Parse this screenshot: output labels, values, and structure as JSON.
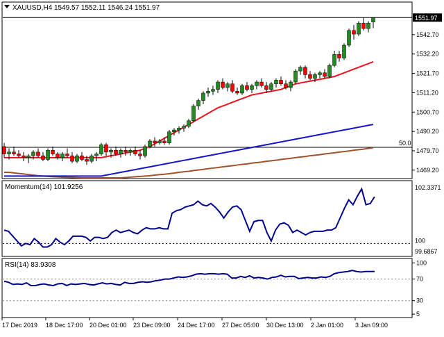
{
  "header": {
    "symbol": "XAUUSD,H4",
    "ohlc": "1549.57 1552.11 1546.24 1551.97"
  },
  "colors": {
    "bull": "#228b22",
    "bear": "#ff0000",
    "ma_fast": "#e8141e",
    "ma_mid": "#1414c8",
    "ma_slow": "#a0522d",
    "indicator": "#00008b",
    "grid": "#000000"
  },
  "chart_data": [
    {
      "type": "candlestick",
      "title": "XAUUSD,H4",
      "ylim": [
        1465,
        1560
      ],
      "yticks": [
        "1469.20",
        "1479.70",
        "1490.20",
        "1500.70",
        "1511.20",
        "1521.70",
        "1532.20",
        "1542.70"
      ],
      "yticks_values": [
        1469.2,
        1479.7,
        1490.2,
        1500.7,
        1511.2,
        1521.7,
        1532.2,
        1542.7
      ],
      "current_price": "1551.97",
      "level_label": "50.0",
      "level_value": 1481.6,
      "candles": [
        [
          1482,
          1484,
          1476,
          1478
        ],
        [
          1478,
          1481,
          1475,
          1479
        ],
        [
          1479,
          1482,
          1477,
          1478
        ],
        [
          1478,
          1480,
          1476,
          1477
        ],
        [
          1477,
          1479,
          1474,
          1476
        ],
        [
          1476,
          1478,
          1473,
          1477
        ],
        [
          1477,
          1480,
          1475,
          1479
        ],
        [
          1479,
          1481,
          1476,
          1477
        ],
        [
          1477,
          1479,
          1474,
          1475
        ],
        [
          1475,
          1481,
          1474,
          1480
        ],
        [
          1480,
          1482,
          1477,
          1478
        ],
        [
          1478,
          1479,
          1475,
          1476
        ],
        [
          1476,
          1479,
          1474,
          1478
        ],
        [
          1478,
          1481,
          1476,
          1477
        ],
        [
          1477,
          1479,
          1473,
          1474
        ],
        [
          1474,
          1478,
          1473,
          1477
        ],
        [
          1477,
          1479,
          1474,
          1475
        ],
        [
          1475,
          1477,
          1472,
          1474
        ],
        [
          1474,
          1478,
          1473,
          1477
        ],
        [
          1477,
          1479,
          1474,
          1478
        ],
        [
          1478,
          1484,
          1477,
          1483
        ],
        [
          1483,
          1484,
          1477,
          1479
        ],
        [
          1479,
          1481,
          1476,
          1480
        ],
        [
          1480,
          1482,
          1477,
          1478
        ],
        [
          1478,
          1481,
          1476,
          1480
        ],
        [
          1480,
          1482,
          1477,
          1479
        ],
        [
          1479,
          1481,
          1477,
          1480
        ],
        [
          1480,
          1482,
          1477,
          1478
        ],
        [
          1478,
          1480,
          1475,
          1477
        ],
        [
          1477,
          1483,
          1476,
          1482
        ],
        [
          1482,
          1486,
          1481,
          1485
        ],
        [
          1485,
          1487,
          1482,
          1484
        ],
        [
          1484,
          1486,
          1483,
          1485
        ],
        [
          1485,
          1487,
          1483,
          1484
        ],
        [
          1484,
          1491,
          1483,
          1490
        ],
        [
          1490,
          1492,
          1488,
          1491
        ],
        [
          1491,
          1493,
          1489,
          1492
        ],
        [
          1492,
          1494,
          1490,
          1493
        ],
        [
          1493,
          1497,
          1492,
          1496
        ],
        [
          1496,
          1505,
          1495,
          1504
        ],
        [
          1504,
          1508,
          1502,
          1507
        ],
        [
          1507,
          1512,
          1505,
          1511
        ],
        [
          1511,
          1514,
          1509,
          1512
        ],
        [
          1512,
          1515,
          1510,
          1513
        ],
        [
          1513,
          1518,
          1511,
          1517
        ],
        [
          1517,
          1519,
          1513,
          1514
        ],
        [
          1514,
          1517,
          1512,
          1516
        ],
        [
          1516,
          1518,
          1511,
          1512
        ],
        [
          1512,
          1514,
          1510,
          1511
        ],
        [
          1511,
          1516,
          1510,
          1515
        ],
        [
          1515,
          1517,
          1512,
          1513
        ],
        [
          1513,
          1516,
          1511,
          1515
        ],
        [
          1515,
          1518,
          1513,
          1517
        ],
        [
          1517,
          1519,
          1514,
          1515
        ],
        [
          1515,
          1517,
          1511,
          1513
        ],
        [
          1513,
          1517,
          1512,
          1516
        ],
        [
          1516,
          1519,
          1514,
          1518
        ],
        [
          1518,
          1520,
          1515,
          1516
        ],
        [
          1516,
          1518,
          1513,
          1514
        ],
        [
          1514,
          1518,
          1512,
          1517
        ],
        [
          1517,
          1524,
          1516,
          1523
        ],
        [
          1523,
          1526,
          1521,
          1525
        ],
        [
          1525,
          1526,
          1519,
          1521
        ],
        [
          1521,
          1523,
          1518,
          1519
        ],
        [
          1519,
          1522,
          1517,
          1521
        ],
        [
          1521,
          1523,
          1519,
          1522
        ],
        [
          1522,
          1524,
          1519,
          1520
        ],
        [
          1520,
          1527,
          1519,
          1526
        ],
        [
          1526,
          1534,
          1525,
          1532
        ],
        [
          1532,
          1534,
          1528,
          1530
        ],
        [
          1530,
          1538,
          1529,
          1537
        ],
        [
          1537,
          1546,
          1536,
          1545
        ],
        [
          1545,
          1548,
          1540,
          1543
        ],
        [
          1543,
          1550,
          1542,
          1549
        ],
        [
          1549,
          1552,
          1545,
          1546
        ],
        [
          1546,
          1550,
          1544,
          1549
        ],
        [
          1549.57,
          1552.11,
          1546.24,
          1551.97
        ]
      ],
      "ma_fast": [
        1476,
        1476,
        1476,
        1476,
        1476,
        1476,
        1476,
        1476,
        1476,
        1476,
        1476,
        1476,
        1476,
        1476,
        1476,
        1476,
        1476,
        1476,
        1476,
        1476,
        1476,
        1476.5,
        1477,
        1477.5,
        1478,
        1478.5,
        1479,
        1479.5,
        1480,
        1481,
        1482,
        1483.5,
        1485,
        1486.5,
        1488,
        1489.5,
        1491,
        1492.5,
        1494,
        1495.5,
        1497,
        1498.5,
        1500,
        1501.5,
        1503,
        1504,
        1505,
        1506,
        1507,
        1508,
        1509,
        1510,
        1510.5,
        1511,
        1511.5,
        1512,
        1512.5,
        1513,
        1514,
        1515,
        1516,
        1516.5,
        1517,
        1517.5,
        1518,
        1518.5,
        1519,
        1519.5,
        1520,
        1521,
        1522,
        1523,
        1524,
        1525,
        1526,
        1527,
        1528
      ],
      "ma_mid": [
        1466,
        1466,
        1466,
        1466,
        1466,
        1466,
        1466,
        1466,
        1466,
        1466,
        1466,
        1466,
        1466,
        1466,
        1466,
        1466,
        1466,
        1466,
        1466,
        1466,
        1466,
        1466.5,
        1467,
        1467.5,
        1468,
        1468.5,
        1469,
        1469.5,
        1470,
        1470.5,
        1471,
        1471.5,
        1472,
        1472.5,
        1473,
        1473.5,
        1474,
        1474.5,
        1475,
        1475.5,
        1476,
        1476.5,
        1477,
        1477.5,
        1478,
        1478.5,
        1479,
        1479.5,
        1480,
        1480.5,
        1481,
        1481.5,
        1482,
        1482.5,
        1483,
        1483.5,
        1484,
        1484.5,
        1485,
        1485.5,
        1486,
        1486.5,
        1487,
        1487.5,
        1488,
        1488.5,
        1489,
        1489.5,
        1490,
        1490.5,
        1491,
        1491.5,
        1492,
        1492.5,
        1493,
        1493.5,
        1494
      ],
      "ma_slow": [
        1468,
        1468,
        1467.7,
        1467.4,
        1467.1,
        1466.8,
        1466.5,
        1466.2,
        1466,
        1465.8,
        1465.6,
        1465.5,
        1465.4,
        1465.3,
        1465.2,
        1465.1,
        1465,
        1465,
        1465,
        1465,
        1465,
        1465,
        1465,
        1465,
        1465,
        1465.2,
        1465.4,
        1465.6,
        1465.8,
        1466,
        1466.2,
        1466.5,
        1466.8,
        1467,
        1467.3,
        1467.6,
        1468,
        1468.3,
        1468.6,
        1469,
        1469.3,
        1469.6,
        1470,
        1470.3,
        1470.6,
        1471,
        1471.3,
        1471.6,
        1472,
        1472.3,
        1472.6,
        1473,
        1473.3,
        1473.6,
        1474,
        1474.3,
        1474.6,
        1475,
        1475.3,
        1475.6,
        1476,
        1476.3,
        1476.6,
        1477,
        1477.3,
        1477.6,
        1478,
        1478.3,
        1478.6,
        1479,
        1479.3,
        1479.6,
        1480,
        1480.3,
        1480.6,
        1481,
        1481.3
      ]
    },
    {
      "type": "line",
      "title": "Momentum(14) 101.9256",
      "yticks": [
        "102.3371",
        "100",
        "99.6867"
      ],
      "yticks_values": [
        102.3371,
        100,
        99.6867
      ],
      "ylim": [
        99.6867,
        102.3371
      ],
      "series": [
        {
          "values": [
            100.55,
            100.5,
            100.3,
            100.1,
            99.9,
            100,
            99.95,
            100.2,
            100.05,
            99.85,
            99.85,
            99.95,
            100.2,
            100.05,
            99.95,
            100.1,
            100.3,
            100.3,
            100.3,
            100.25,
            100.1,
            100.25,
            100.25,
            100.2,
            100.25,
            100.45,
            100.55,
            100.45,
            100.5,
            100.55,
            100.45,
            100.4,
            100.55,
            100.65,
            100.6,
            100.6,
            100.65,
            100.6,
            100.6,
            101.25,
            101.35,
            101.4,
            101.5,
            101.55,
            101.6,
            101.75,
            101.6,
            101.55,
            101.65,
            101.5,
            101.3,
            101.05,
            101.3,
            101.5,
            101.55,
            101.4,
            100.95,
            100.5,
            100.9,
            100.95,
            100.95,
            100.45,
            100.1,
            100.55,
            100.8,
            100.85,
            100.75,
            100.45,
            100.55,
            100.45,
            100.35,
            100.45,
            100.5,
            100.5,
            100.5,
            100.55,
            100.55,
            100.65,
            101.05,
            101.45,
            101.8,
            101.6,
            101.95,
            102.25,
            101.6,
            101.65,
            101.9256
          ]
        }
      ]
    },
    {
      "type": "line",
      "title": "RSI(14) 83.9308",
      "yticks": [
        "100",
        "70",
        "30",
        "5"
      ],
      "yticks_values": [
        100,
        70,
        30,
        5
      ],
      "levels": [
        70,
        30
      ],
      "ylim": [
        0,
        100
      ],
      "series": [
        {
          "values": [
            66,
            64,
            60,
            61,
            60,
            63,
            58,
            58,
            60,
            61,
            59,
            58,
            61,
            62,
            58,
            61,
            60,
            61,
            62,
            60,
            59,
            61,
            63,
            61,
            62,
            60,
            59,
            64,
            62,
            62,
            64,
            65,
            64,
            65,
            67,
            68,
            70,
            70,
            72,
            74,
            73,
            74,
            76,
            79,
            80,
            79,
            80,
            80,
            79,
            80,
            79,
            72,
            72,
            75,
            73,
            76,
            72,
            73,
            72,
            70,
            73,
            74,
            77,
            74,
            75,
            75,
            71,
            72,
            73,
            72,
            72,
            74,
            73,
            75,
            80,
            82,
            83,
            84,
            86,
            84,
            83,
            84,
            84,
            83.9308
          ]
        }
      ]
    }
  ],
  "xaxis": {
    "labels": [
      "17 Dec 2019",
      "18 Dec 17:00",
      "20 Dec 01:00",
      "23 Dec 09:00",
      "24 Dec 17:00",
      "27 Dec 05:00",
      "30 Dec 13:00",
      "2 Jan 01:00",
      "3 Jan 09:00"
    ]
  }
}
